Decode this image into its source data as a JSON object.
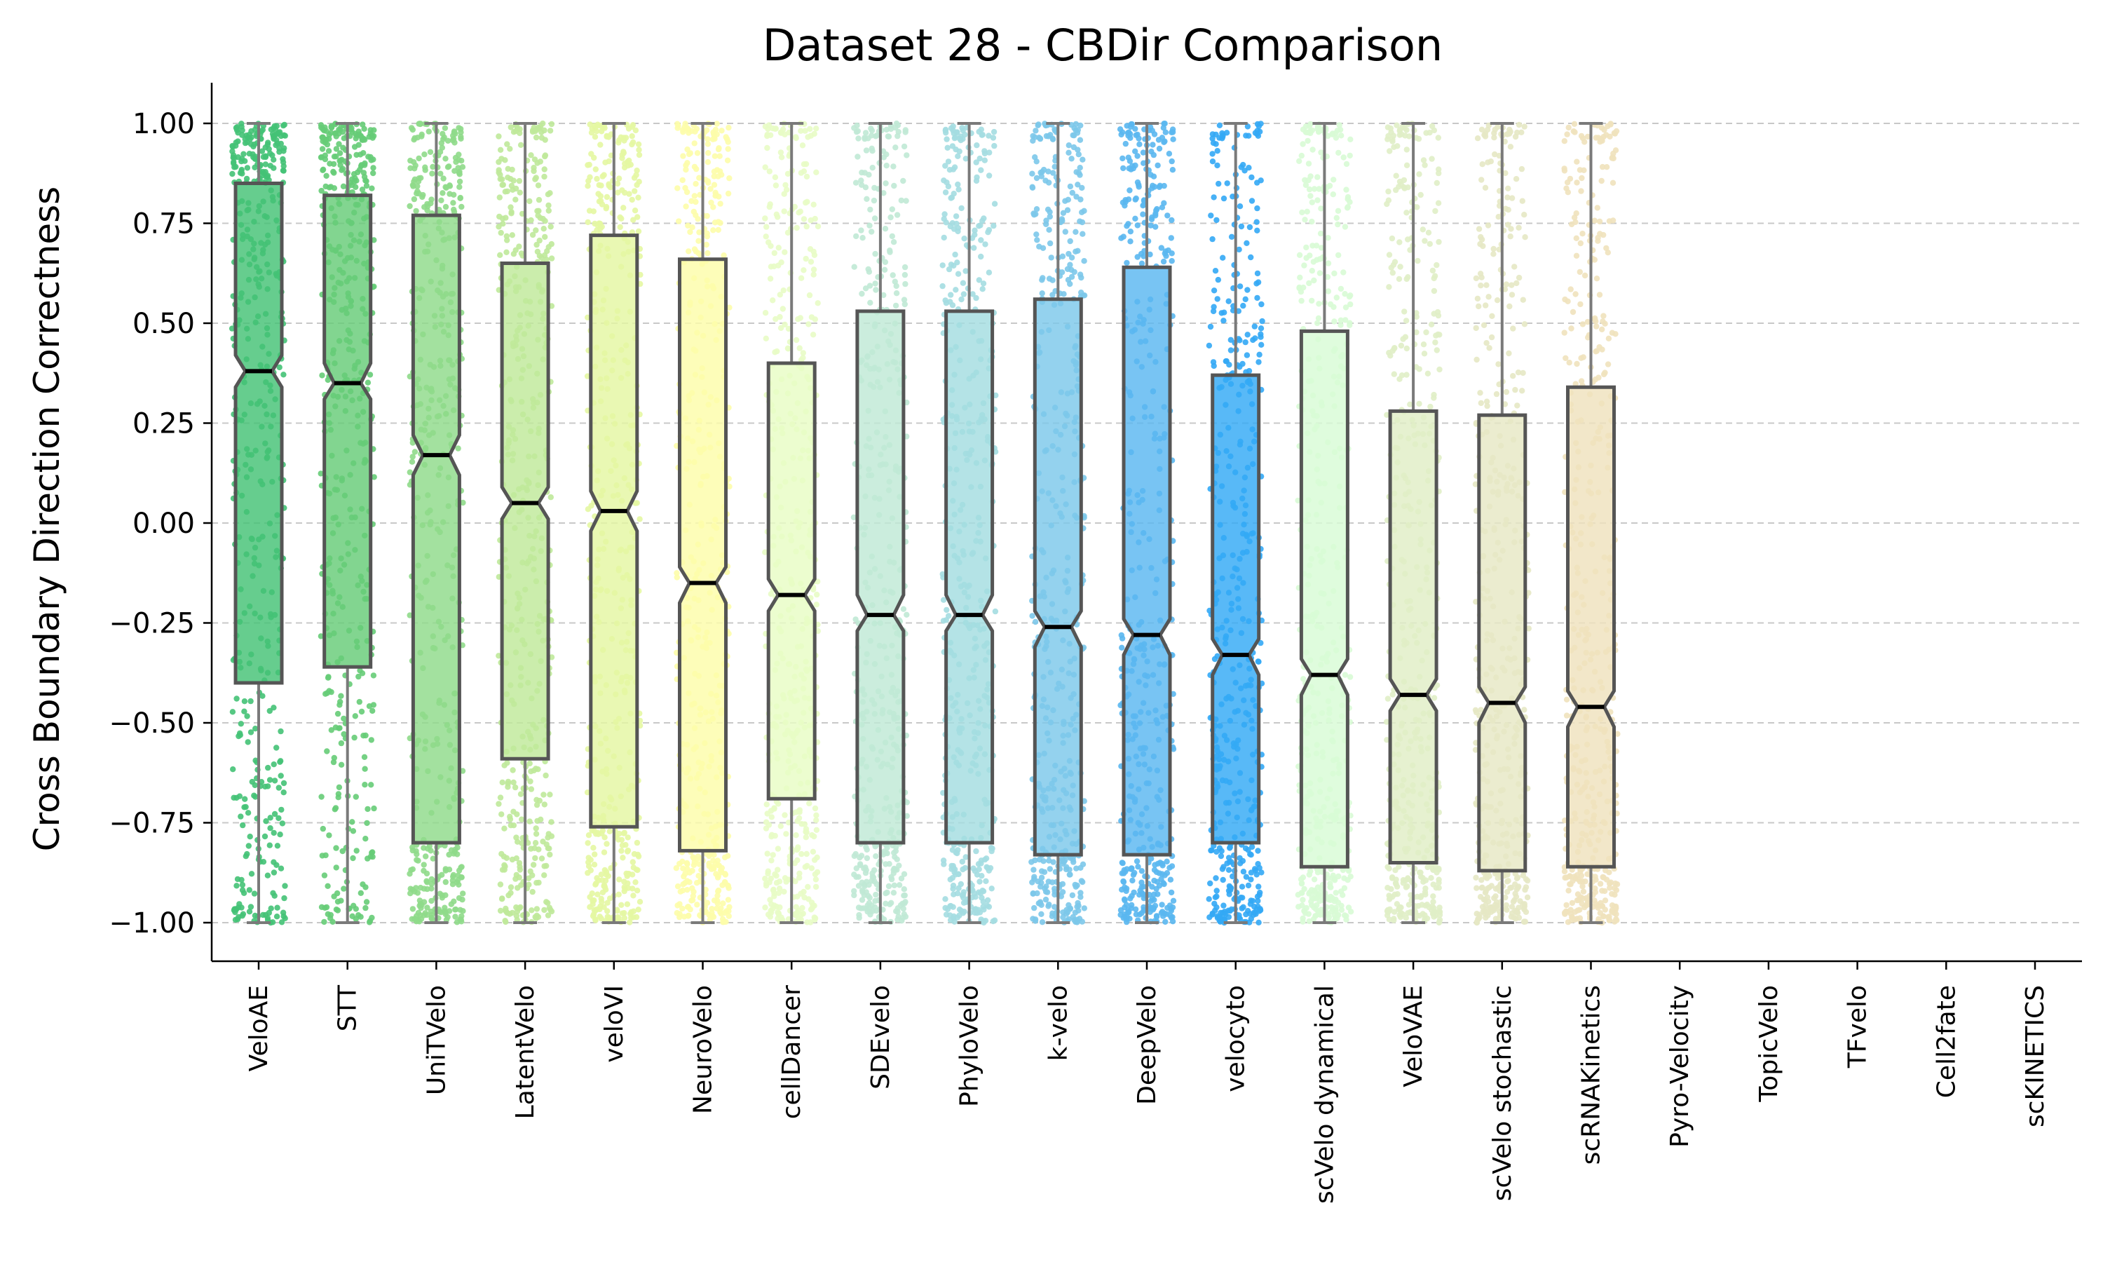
{
  "chart_data": {
    "type": "box",
    "title": "Dataset 28 - CBDir Comparison",
    "xlabel": "",
    "ylabel": "Cross Boundary Direction Correctness",
    "ylim": [
      -1.1,
      1.1
    ],
    "yticks": [
      "1.00",
      "0.75",
      "0.50",
      "0.25",
      "0.00",
      "−0.25",
      "−0.50",
      "−0.75",
      "−1.00"
    ],
    "ytick_values": [
      1.0,
      0.75,
      0.5,
      0.25,
      0.0,
      -0.25,
      -0.5,
      -0.75,
      -1.0
    ],
    "grid": "horizontal dashed",
    "notched": true,
    "overlay": "jittered points",
    "categories": [
      "VeloAE",
      "STT",
      "UniTVelo",
      "LatentVelo",
      "veloVI",
      "NeuroVelo",
      "cellDancer",
      "SDEvelo",
      "PhyloVelo",
      "k-velo",
      "DeepVelo",
      "velocyto",
      "scVelo dynamical",
      "VeloVAE",
      "scVelo stochastic",
      "scRNAKinetics",
      "Pyro-Velocity",
      "TopicVelo",
      "TFvelo",
      "Cell2fate",
      "scKINETICS"
    ],
    "series": [
      {
        "name": "VeloAE",
        "color": "#44c275",
        "whisker_low": -1.0,
        "q1": -0.4,
        "median": 0.38,
        "q3": 0.85,
        "whisker_high": 1.0,
        "notch_low": 0.34,
        "notch_high": 0.42
      },
      {
        "name": "STT",
        "color": "#66cc77",
        "whisker_low": -1.0,
        "q1": -0.36,
        "median": 0.35,
        "q3": 0.82,
        "whisker_high": 1.0,
        "notch_low": 0.31,
        "notch_high": 0.4
      },
      {
        "name": "UniTVelo",
        "color": "#8fda8a",
        "whisker_low": -1.0,
        "q1": -0.8,
        "median": 0.17,
        "q3": 0.77,
        "whisker_high": 1.0,
        "notch_low": 0.12,
        "notch_high": 0.22
      },
      {
        "name": "LatentVelo",
        "color": "#bfe99a",
        "whisker_low": -1.0,
        "q1": -0.59,
        "median": 0.05,
        "q3": 0.65,
        "whisker_high": 1.0,
        "notch_low": 0.01,
        "notch_high": 0.09
      },
      {
        "name": "veloVI",
        "color": "#e4f7a2",
        "whisker_low": -1.0,
        "q1": -0.76,
        "median": 0.03,
        "q3": 0.72,
        "whisker_high": 1.0,
        "notch_low": -0.02,
        "notch_high": 0.08
      },
      {
        "name": "NeuroVelo",
        "color": "#fdfdaa",
        "whisker_low": -1.0,
        "q1": -0.82,
        "median": -0.15,
        "q3": 0.66,
        "whisker_high": 1.0,
        "notch_low": -0.2,
        "notch_high": -0.11
      },
      {
        "name": "cellDancer",
        "color": "#e8fcc5",
        "whisker_low": -1.0,
        "q1": -0.69,
        "median": -0.18,
        "q3": 0.4,
        "whisker_high": 1.0,
        "notch_low": -0.22,
        "notch_high": -0.14
      },
      {
        "name": "SDEvelo",
        "color": "#c0e9d5",
        "whisker_low": -1.0,
        "q1": -0.8,
        "median": -0.23,
        "q3": 0.53,
        "whisker_high": 1.0,
        "notch_low": -0.27,
        "notch_high": -0.18
      },
      {
        "name": "PhyloVelo",
        "color": "#a4dde1",
        "whisker_low": -1.0,
        "q1": -0.8,
        "median": -0.23,
        "q3": 0.53,
        "whisker_high": 1.0,
        "notch_low": -0.27,
        "notch_high": -0.18
      },
      {
        "name": "k-velo",
        "color": "#7cc8ea",
        "whisker_low": -1.0,
        "q1": -0.83,
        "median": -0.26,
        "q3": 0.56,
        "whisker_high": 1.0,
        "notch_low": -0.31,
        "notch_high": -0.22
      },
      {
        "name": "DeepVelo",
        "color": "#5ab7f0",
        "whisker_low": -1.0,
        "q1": -0.83,
        "median": -0.28,
        "q3": 0.64,
        "whisker_high": 1.0,
        "notch_low": -0.33,
        "notch_high": -0.24
      },
      {
        "name": "velocyto",
        "color": "#33a9f5",
        "whisker_low": -1.0,
        "q1": -0.8,
        "median": -0.33,
        "q3": 0.37,
        "whisker_high": 1.0,
        "notch_low": -0.38,
        "notch_high": -0.29
      },
      {
        "name": "scVelo dynamical",
        "color": "#d8fbd5",
        "whisker_low": -1.0,
        "q1": -0.86,
        "median": -0.38,
        "q3": 0.48,
        "whisker_high": 1.0,
        "notch_low": -0.43,
        "notch_high": -0.34
      },
      {
        "name": "VeloVAE",
        "color": "#e0eec6",
        "whisker_low": -1.0,
        "q1": -0.85,
        "median": -0.43,
        "q3": 0.28,
        "whisker_high": 1.0,
        "notch_low": -0.47,
        "notch_high": -0.39
      },
      {
        "name": "scVelo stochastic",
        "color": "#e6e8c4",
        "whisker_low": -1.0,
        "q1": -0.87,
        "median": -0.45,
        "q3": 0.27,
        "whisker_high": 1.0,
        "notch_low": -0.5,
        "notch_high": -0.41
      },
      {
        "name": "scRNAKinetics",
        "color": "#efe2bd",
        "whisker_low": -1.0,
        "q1": -0.86,
        "median": -0.46,
        "q3": 0.34,
        "whisker_high": 1.0,
        "notch_low": -0.51,
        "notch_high": -0.42
      },
      {
        "name": "Pyro-Velocity",
        "color": "",
        "empty": true
      },
      {
        "name": "TopicVelo",
        "color": "",
        "empty": true
      },
      {
        "name": "TFvelo",
        "color": "",
        "empty": true
      },
      {
        "name": "Cell2fate",
        "color": "",
        "empty": true
      },
      {
        "name": "scKINETICS",
        "color": "",
        "empty": true
      }
    ]
  }
}
